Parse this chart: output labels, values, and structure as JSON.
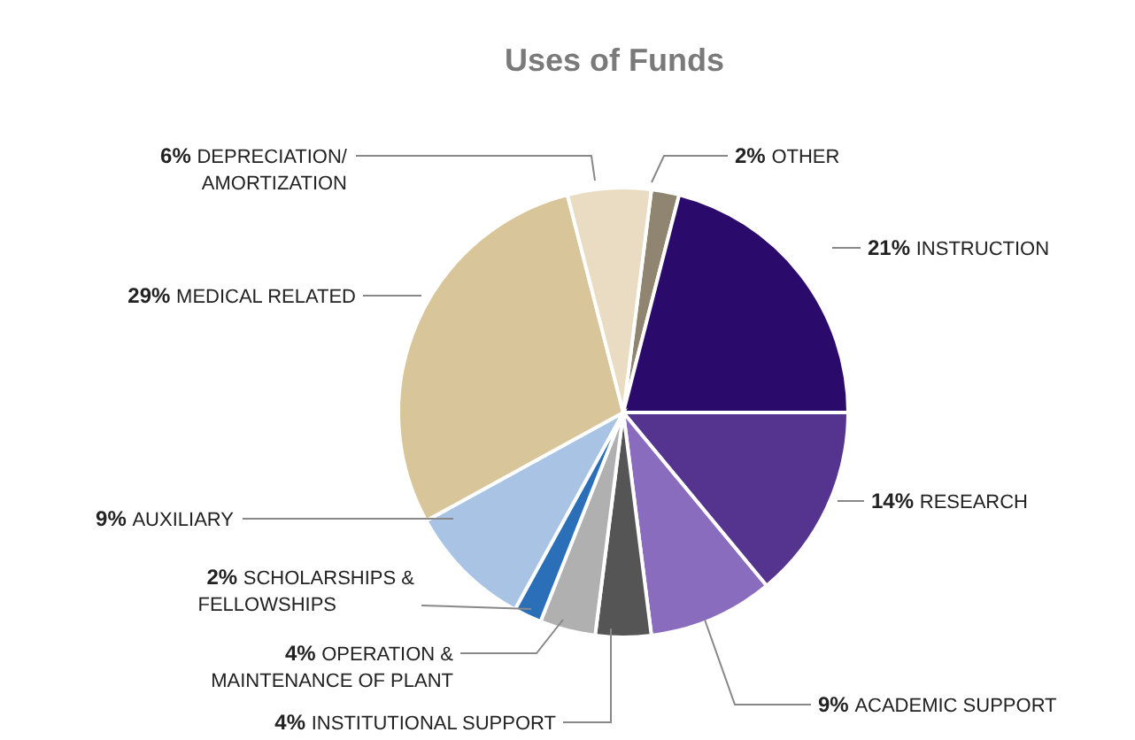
{
  "chart_data": {
    "type": "pie",
    "title": "Uses of Funds",
    "categories": [
      "OTHER",
      "INSTRUCTION",
      "RESEARCH",
      "ACADEMIC SUPPORT",
      "INSTITUTIONAL SUPPORT",
      "OPERATION & MAINTENANCE OF PLANT",
      "SCHOLARSHIPS & FELLOWSHIPS",
      "AUXILIARY",
      "MEDICAL RELATED",
      "DEPRECIATION/ AMORTIZATION"
    ],
    "values": [
      2,
      21,
      14,
      9,
      4,
      4,
      2,
      9,
      29,
      6
    ],
    "value_labels": [
      "2%",
      "21%",
      "14%",
      "9%",
      "4%",
      "4%",
      "2%",
      "9%",
      "29%",
      "6%"
    ],
    "colors": [
      "#8f8570",
      "#2a0a6b",
      "#55348f",
      "#8a6cbf",
      "#555555",
      "#b0b0b0",
      "#2a6fb8",
      "#a8c3e3",
      "#d9c59a",
      "#e9dcc2"
    ]
  }
}
